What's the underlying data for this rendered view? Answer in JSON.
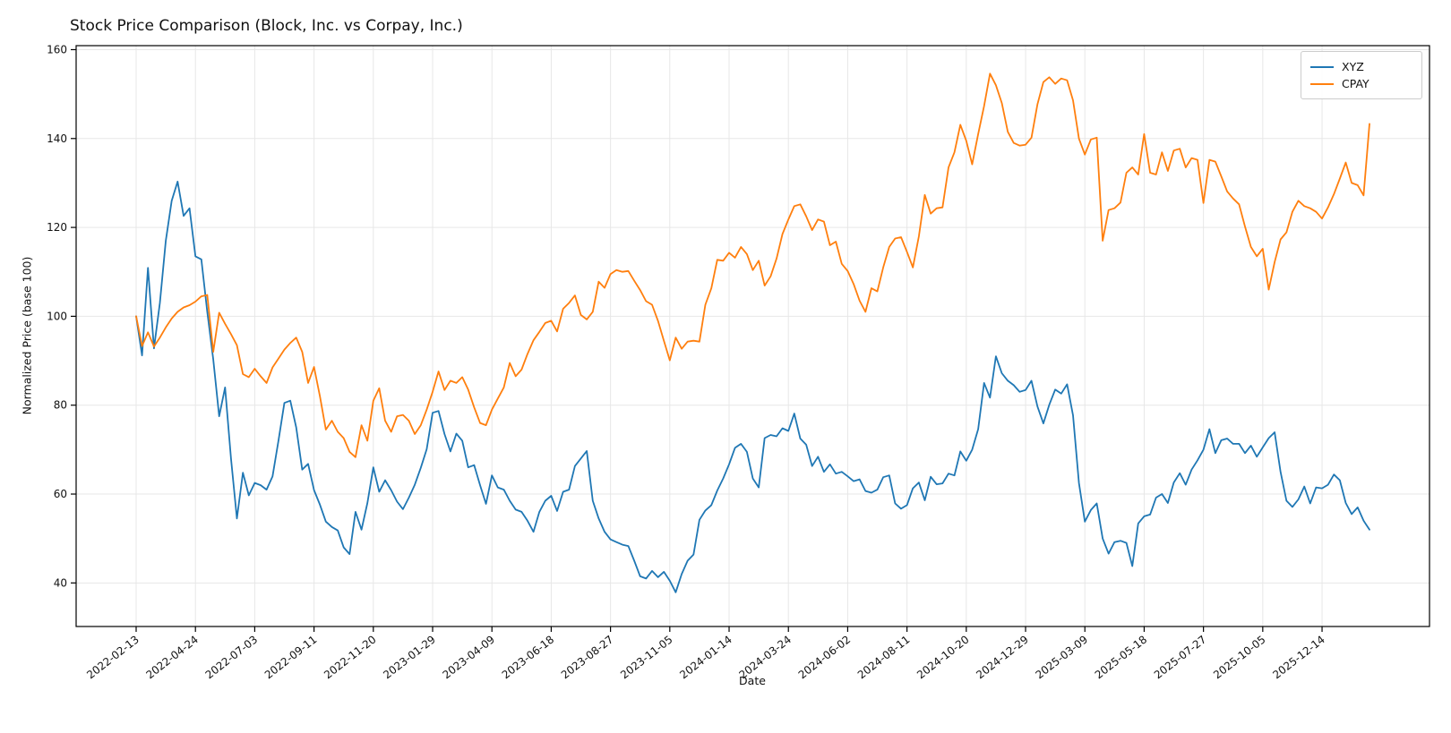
{
  "chart_data": {
    "type": "line",
    "title": "Stock Price Comparison (Block, Inc. vs Corpay, Inc.)",
    "xlabel": "Date",
    "ylabel": "Normalized Price (base 100)",
    "start_date": "2022-02-13",
    "frequency": "weekly",
    "x_tick_interval_points": 10,
    "x_tick_labels": [
      "2022-02-13",
      "2022-04-24",
      "2022-07-03",
      "2022-09-11",
      "2022-11-20",
      "2023-01-29",
      "2023-04-09",
      "2023-06-18",
      "2023-08-27",
      "2023-11-05",
      "2024-01-14",
      "2024-03-24",
      "2024-06-02",
      "2024-08-11",
      "2024-10-20",
      "2024-12-29",
      "2025-03-09",
      "2025-05-18",
      "2025-07-27",
      "2025-10-05",
      "2025-12-14"
    ],
    "y_ticks": [
      40,
      60,
      80,
      100,
      120,
      140,
      160
    ],
    "ylim": [
      30.2,
      160.9
    ],
    "grid": true,
    "grid_color": "#e7e7e7",
    "spine_color": "#000000",
    "legend_position": "upper right",
    "series": [
      {
        "name": "XYZ",
        "color": "#1f77b4",
        "values": [
          100.0,
          91.2,
          110.9,
          92.8,
          103.0,
          117.0,
          126.0,
          130.3,
          122.6,
          124.3,
          113.5,
          112.8,
          101.0,
          90.3,
          77.5,
          84.0,
          68.0,
          54.5,
          64.8,
          59.7,
          62.5,
          62.0,
          61.0,
          64.0,
          72.0,
          80.5,
          81.0,
          75.0,
          65.5,
          66.8,
          60.9,
          57.6,
          53.8,
          52.6,
          51.8,
          48.0,
          46.5,
          56.0,
          52.0,
          58.0,
          66.0,
          60.5,
          63.1,
          60.9,
          58.3,
          56.6,
          59.2,
          62.1,
          65.9,
          70.1,
          78.3,
          78.7,
          73.5,
          69.6,
          73.6,
          72.0,
          66.0,
          66.5,
          62.0,
          57.8,
          64.2,
          61.5,
          61.0,
          58.5,
          56.5,
          56.0,
          54.0,
          51.5,
          56.0,
          58.5,
          59.6,
          56.2,
          60.5,
          61.0,
          66.3,
          68.0,
          69.7,
          58.5,
          54.5,
          51.5,
          49.8,
          49.2,
          48.6,
          48.3,
          45.0,
          41.5,
          41.0,
          42.7,
          41.3,
          42.5,
          40.5,
          37.9,
          42.0,
          45.0,
          46.4,
          54.2,
          56.3,
          57.5,
          60.8,
          63.5,
          66.7,
          70.4,
          71.3,
          69.5,
          63.5,
          61.5,
          72.6,
          73.3,
          73.0,
          74.8,
          74.2,
          78.1,
          72.5,
          71.1,
          66.3,
          68.4,
          65.0,
          66.7,
          64.6,
          65.0,
          64.0,
          62.9,
          63.3,
          60.7,
          60.3,
          61.0,
          63.8,
          64.2,
          57.9,
          56.7,
          57.5,
          61.3,
          62.6,
          58.6,
          63.9,
          62.2,
          62.4,
          64.6,
          64.2,
          69.6,
          67.5,
          70.0,
          74.6,
          85.0,
          81.7,
          91.0,
          87.2,
          85.5,
          84.5,
          83.0,
          83.4,
          85.5,
          79.7,
          75.9,
          80.1,
          83.5,
          82.6,
          84.7,
          77.7,
          62.5,
          53.8,
          56.4,
          57.9,
          50.0,
          46.6,
          49.2,
          49.5,
          49.0,
          43.8,
          53.4,
          55.0,
          55.4,
          59.2,
          60.0,
          58.0,
          62.6,
          64.7,
          62.1,
          65.5,
          67.6,
          70.0,
          74.6,
          69.2,
          72.1,
          72.5,
          71.3,
          71.3,
          69.2,
          70.9,
          68.4,
          70.5,
          72.6,
          73.9,
          65.0,
          58.5,
          57.1,
          58.8,
          61.7,
          57.9,
          61.5,
          61.3,
          62.1,
          64.4,
          63.1,
          58.0,
          55.5,
          57.0,
          54.0,
          52.0
        ]
      },
      {
        "name": "CPAY",
        "color": "#ff7f0e",
        "values": [
          100.0,
          93.3,
          96.4,
          93.2,
          95.2,
          97.5,
          99.5,
          101.0,
          102.0,
          102.5,
          103.3,
          104.5,
          104.8,
          92.0,
          100.8,
          98.3,
          96.0,
          93.5,
          87.0,
          86.3,
          88.2,
          86.5,
          85.0,
          88.5,
          90.5,
          92.5,
          94.0,
          95.2,
          92.0,
          85.0,
          88.6,
          82.0,
          74.5,
          76.5,
          74.0,
          72.6,
          69.5,
          68.3,
          75.5,
          72.0,
          81.0,
          83.8,
          76.5,
          74.0,
          77.5,
          77.8,
          76.5,
          73.5,
          75.5,
          79.0,
          83.0,
          87.6,
          83.4,
          85.5,
          85.0,
          86.3,
          83.5,
          79.5,
          76.0,
          75.5,
          79.0,
          81.5,
          84.0,
          89.5,
          86.5,
          88.0,
          91.5,
          94.6,
          96.5,
          98.5,
          99.0,
          96.6,
          101.7,
          103.0,
          104.7,
          100.3,
          99.3,
          101.0,
          107.8,
          106.4,
          109.5,
          110.4,
          110.0,
          110.2,
          108.0,
          105.9,
          103.4,
          102.6,
          99.0,
          94.5,
          90.1,
          95.2,
          92.7,
          94.3,
          94.5,
          94.3,
          102.6,
          106.3,
          112.7,
          112.5,
          114.3,
          113.2,
          115.6,
          114.0,
          110.4,
          112.5,
          106.9,
          109.0,
          113.0,
          118.5,
          121.8,
          124.8,
          125.2,
          122.5,
          119.4,
          121.8,
          121.3,
          116.0,
          116.8,
          111.8,
          110.2,
          107.3,
          103.5,
          101.0,
          106.3,
          105.6,
          111.0,
          115.6,
          117.5,
          117.8,
          114.5,
          111.0,
          118.0,
          127.3,
          123.1,
          124.3,
          124.5,
          133.5,
          136.9,
          143.1,
          139.5,
          134.2,
          141.0,
          147.3,
          154.6,
          152.0,
          148.0,
          141.5,
          139.0,
          138.4,
          138.6,
          140.2,
          147.7,
          152.7,
          153.8,
          152.3,
          153.5,
          153.1,
          148.6,
          140.0,
          136.4,
          139.8,
          140.2,
          117.0,
          123.9,
          124.3,
          125.6,
          132.3,
          133.5,
          131.9,
          141.0,
          132.3,
          131.9,
          136.9,
          132.7,
          137.3,
          137.7,
          133.5,
          135.6,
          135.2,
          125.5,
          135.2,
          134.8,
          131.5,
          128.1,
          126.5,
          125.2,
          120.2,
          115.6,
          113.5,
          115.2,
          106.0,
          112.2,
          117.3,
          118.9,
          123.5,
          126.0,
          124.8,
          124.3,
          123.5,
          122.0,
          124.5,
          127.5,
          131.0,
          134.6,
          130.0,
          129.5,
          127.2,
          143.3
        ]
      }
    ]
  }
}
